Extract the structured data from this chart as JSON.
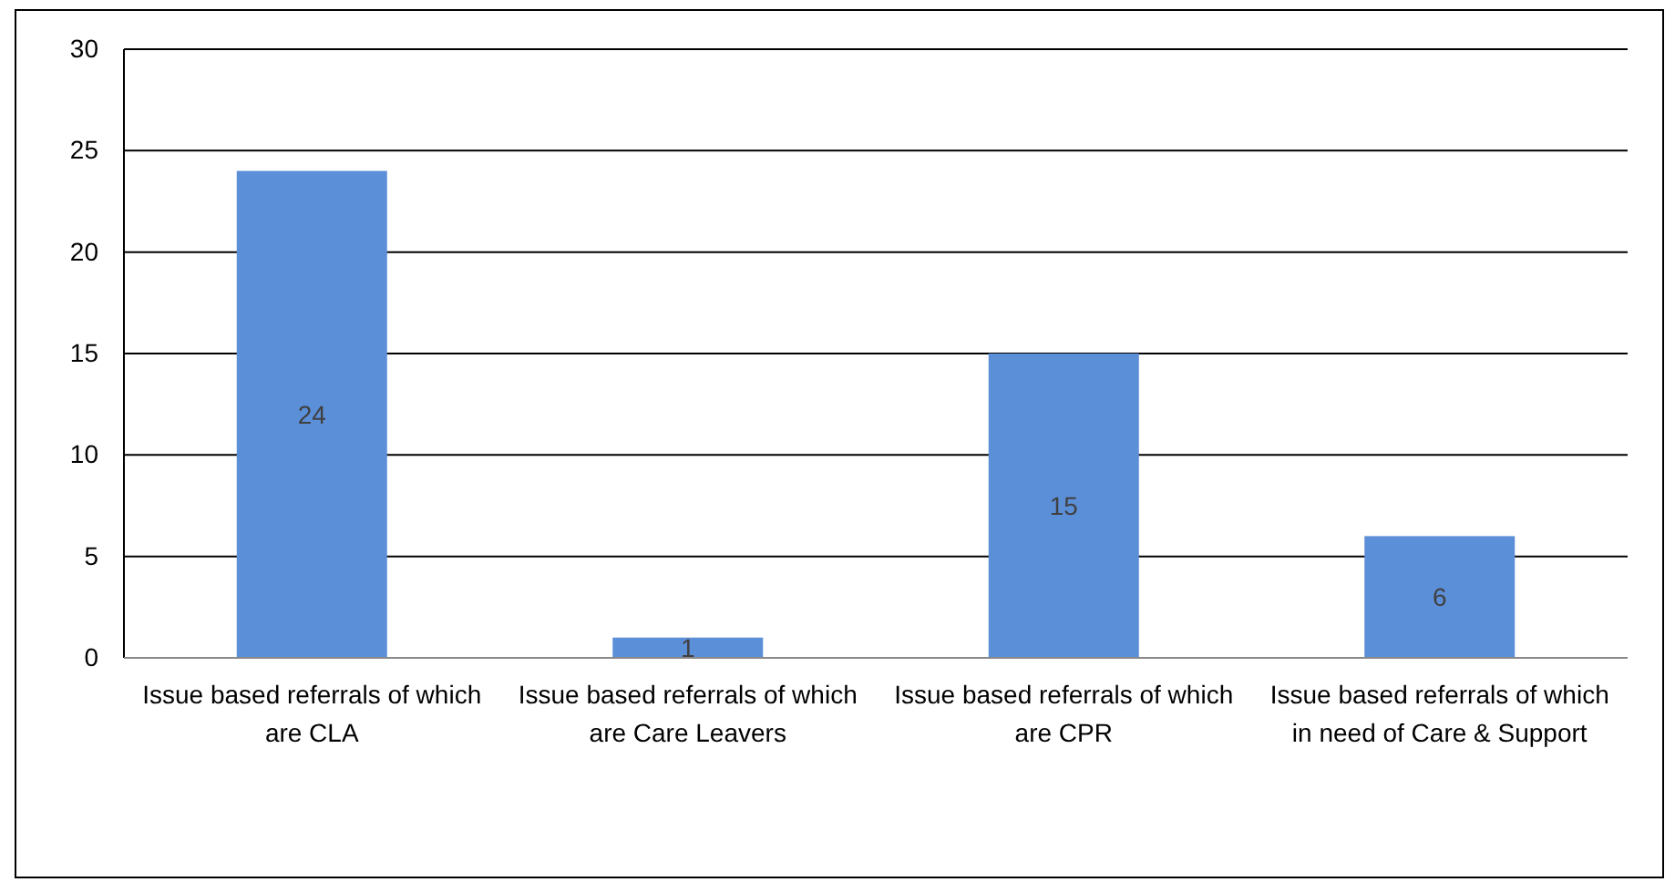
{
  "chart_data": {
    "type": "bar",
    "categories": [
      "Issue based referrals of which are CLA",
      "Issue based referrals of which are Care Leavers",
      "Issue based referrals of which are CPR",
      "Issue based referrals of which in need of Care & Support"
    ],
    "values": [
      24,
      1,
      15,
      6
    ],
    "color": "#5b8fd8",
    "ylim": [
      0,
      30
    ],
    "yticks": [
      0,
      5,
      10,
      15,
      20,
      25,
      30
    ],
    "grid": "y",
    "data_labels": true
  }
}
